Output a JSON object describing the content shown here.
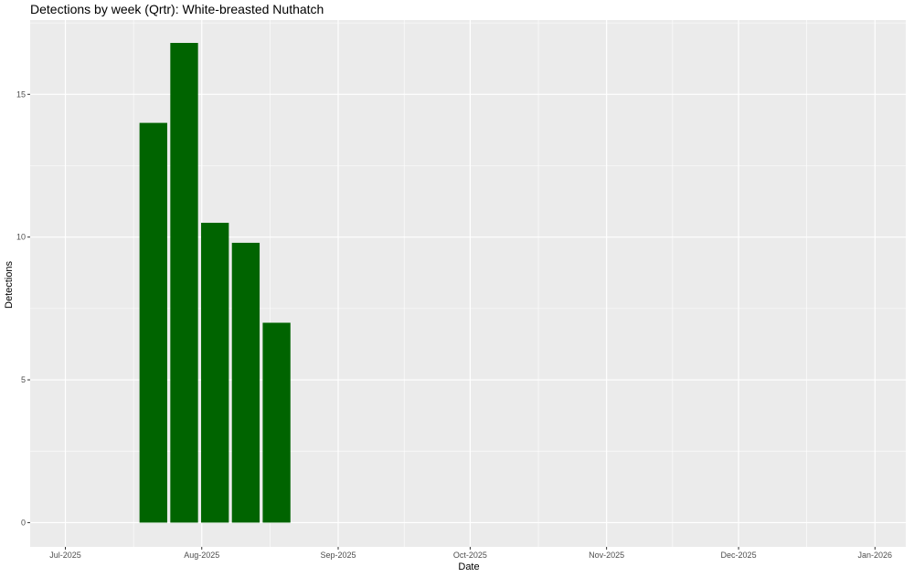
{
  "chart_data": {
    "type": "bar",
    "title": "Detections by week (Qrtr): White-breasted Nuthatch",
    "xlabel": "Date",
    "ylabel": "Detections",
    "x": [
      "2025-07-21",
      "2025-07-28",
      "2025-08-04",
      "2025-08-11",
      "2025-08-18"
    ],
    "values": [
      14.0,
      16.8,
      10.5,
      9.8,
      7.0
    ],
    "bar_color": "#006400",
    "xlim": [
      "2025-06-23",
      "2026-01-08"
    ],
    "ylim": [
      -0.85,
      17.6
    ],
    "x_ticks": [
      {
        "date": "2025-07-01",
        "label": "Jul-2025"
      },
      {
        "date": "2025-08-01",
        "label": "Aug-2025"
      },
      {
        "date": "2025-09-01",
        "label": "Sep-2025"
      },
      {
        "date": "2025-10-01",
        "label": "Oct-2025"
      },
      {
        "date": "2025-11-01",
        "label": "Nov-2025"
      },
      {
        "date": "2025-12-01",
        "label": "Dec-2025"
      },
      {
        "date": "2026-01-01",
        "label": "Jan-2026"
      }
    ],
    "y_ticks": [
      0,
      5,
      10,
      15
    ],
    "panel_background": "#ebebeb",
    "grid_color": "#ffffff",
    "grid": true,
    "legend": "none"
  }
}
